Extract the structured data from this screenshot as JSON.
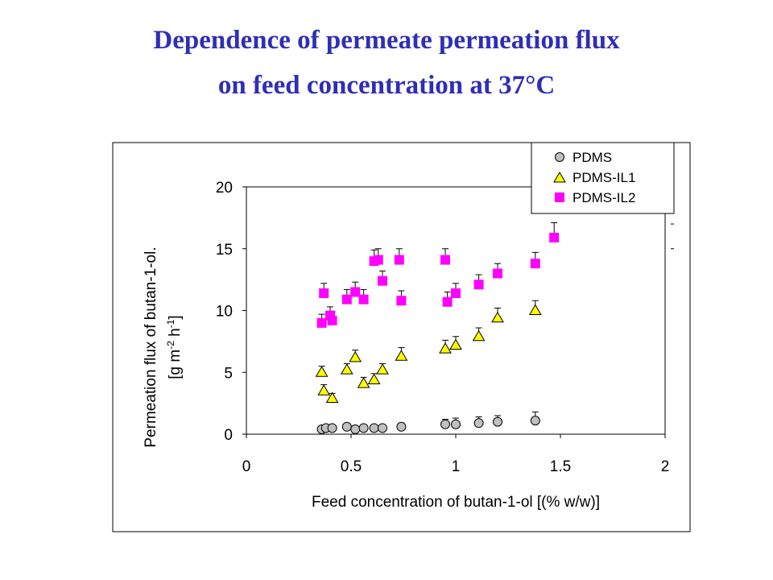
{
  "slide": {
    "title_line1": "Dependence of permeate permeation flux",
    "title_line2": "on feed concentration at 37°C"
  },
  "chart_data": {
    "type": "scatter",
    "title": "",
    "xlabel": "Feed concentration of butan-1-ol [(% w/w)]",
    "ylabel_line1": "Permeation flux of butan-1-ol.",
    "ylabel_line2": "[g m-2 h-1]",
    "xlim": [
      0,
      2
    ],
    "ylim": [
      0,
      20
    ],
    "xticks": [
      "0",
      "0.5",
      "1",
      "1.5",
      "2"
    ],
    "yticks": [
      "0",
      "5",
      "10",
      "15",
      "20"
    ],
    "grid": false,
    "legend_position": "top-right",
    "series": [
      {
        "name": "PDMS",
        "marker": "circle",
        "color": "#c0c0c0",
        "x": [
          0.36,
          0.38,
          0.41,
          0.48,
          0.52,
          0.56,
          0.61,
          0.65,
          0.74,
          0.95,
          1.0,
          1.11,
          1.2,
          1.38
        ],
        "y": [
          0.4,
          0.5,
          0.5,
          0.6,
          0.4,
          0.5,
          0.5,
          0.5,
          0.6,
          0.8,
          0.8,
          0.9,
          1.0,
          1.1
        ],
        "err": [
          0.2,
          0.2,
          0.2,
          0.2,
          0.2,
          0.2,
          0.2,
          0.2,
          0.3,
          0.4,
          0.5,
          0.5,
          0.5,
          0.7
        ]
      },
      {
        "name": "PDMS-IL1",
        "marker": "triangle",
        "color": "#ffff00",
        "x": [
          0.36,
          0.37,
          0.41,
          0.48,
          0.52,
          0.56,
          0.61,
          0.65,
          0.74,
          0.95,
          1.0,
          1.11,
          1.2,
          1.38
        ],
        "y": [
          5.0,
          3.5,
          2.9,
          5.2,
          6.2,
          4.1,
          4.4,
          5.2,
          6.3,
          6.9,
          7.2,
          7.9,
          9.4,
          10.0
        ],
        "err": [
          0.5,
          0.5,
          0.4,
          0.5,
          0.6,
          0.5,
          0.5,
          0.5,
          0.7,
          0.7,
          0.7,
          0.7,
          0.8,
          0.8
        ]
      },
      {
        "name": "PDMS-IL2",
        "marker": "square",
        "color": "#ff00ff",
        "x": [
          0.36,
          0.37,
          0.4,
          0.41,
          0.48,
          0.52,
          0.56,
          0.61,
          0.63,
          0.65,
          0.73,
          0.74,
          0.95,
          0.96,
          1.0,
          1.11,
          1.2,
          1.38,
          1.47
        ],
        "y": [
          9.0,
          11.4,
          9.6,
          9.2,
          10.9,
          11.5,
          10.9,
          14.0,
          14.1,
          12.4,
          14.1,
          10.8,
          14.1,
          10.7,
          11.4,
          12.1,
          13.0,
          13.8,
          15.9
        ],
        "err": [
          0.7,
          0.8,
          0.7,
          0.7,
          0.8,
          0.8,
          0.8,
          0.9,
          0.9,
          0.8,
          0.9,
          0.8,
          0.9,
          0.8,
          0.8,
          0.8,
          0.8,
          0.9,
          1.2
        ]
      }
    ]
  }
}
